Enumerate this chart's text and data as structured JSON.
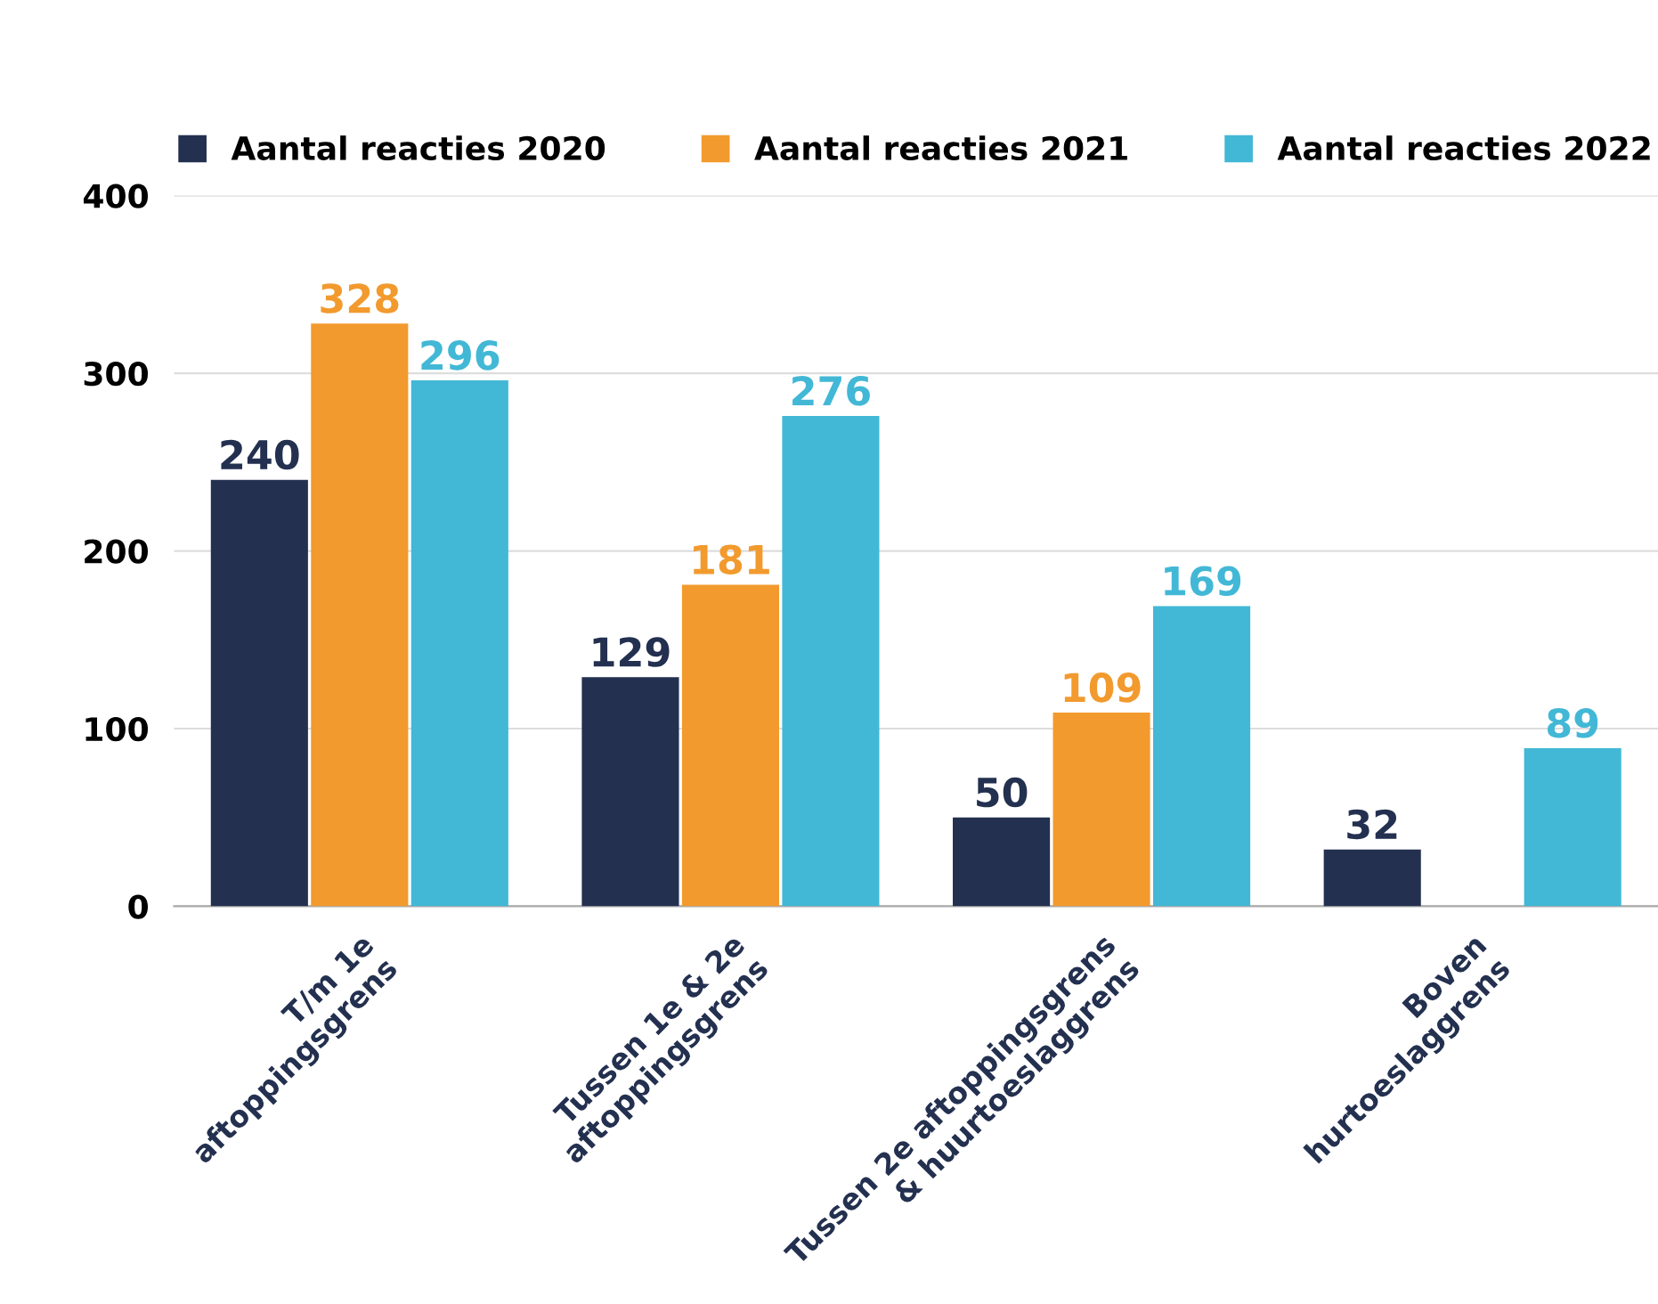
{
  "chart_data": {
    "type": "bar",
    "categories": [
      "T/m 1e\naftoppingsgrens",
      "Tussen 1e & 2e\naftoppingsgrens",
      "Tussen 2e aftoppingsgrens\n& huurtoeslaggrens",
      "Boven\nhurtoeslaggrens"
    ],
    "series": [
      {
        "name": "Aantal reacties 2020",
        "color": "#23304f",
        "values": [
          240,
          129,
          50,
          32
        ]
      },
      {
        "name": "Aantal reacties 2021",
        "color": "#f29a2e",
        "values": [
          328,
          181,
          109,
          null
        ]
      },
      {
        "name": "Aantal reacties 2022",
        "color": "#42b8d6",
        "values": [
          296,
          276,
          169,
          89
        ]
      }
    ],
    "ylim": [
      0,
      400
    ],
    "yticks": [
      0,
      100,
      200,
      300,
      400
    ],
    "grid": "y",
    "legend": "top",
    "data_labels": true
  }
}
